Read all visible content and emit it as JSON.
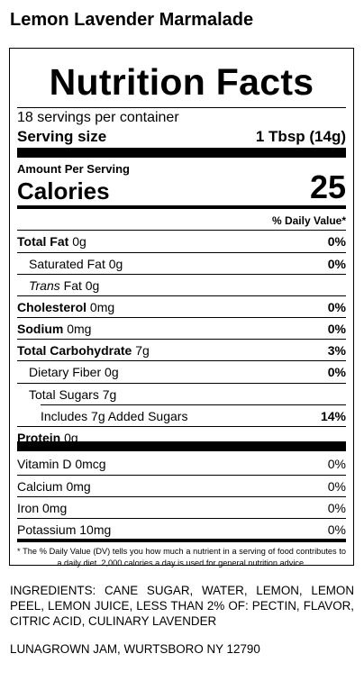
{
  "product_name": "Lemon Lavender Marmalade",
  "label": {
    "title": "Nutrition Facts",
    "servings_per_container": "18 servings per container",
    "serving_size_label": "Serving size",
    "serving_size_value": "1 Tbsp (14g)",
    "amount_per_serving": "Amount Per Serving",
    "calories_label": "Calories",
    "calories_value": "25",
    "daily_value_header": "% Daily Value*",
    "nutrients": [
      {
        "name": "Total Fat",
        "amount": "0g",
        "dv": "0%"
      },
      {
        "name": "Saturated Fat",
        "amount": "0g",
        "dv": "0%"
      },
      {
        "name": "Trans",
        "amount": "Fat 0g",
        "dv": ""
      },
      {
        "name": "Cholesterol",
        "amount": "0mg",
        "dv": "0%"
      },
      {
        "name": "Sodium",
        "amount": "0mg",
        "dv": "0%"
      },
      {
        "name": "Total Carbohydrate",
        "amount": "7g",
        "dv": "3%"
      },
      {
        "name": "Dietary Fiber",
        "amount": "0g",
        "dv": "0%"
      },
      {
        "name": "Total Sugars",
        "amount": "7g",
        "dv": ""
      },
      {
        "name": "Includes 7g Added Sugars",
        "amount": "",
        "dv": "14%"
      },
      {
        "name": "Protein",
        "amount": "0g",
        "dv": ""
      }
    ],
    "micronutrients": [
      {
        "name": "Vitamin D",
        "amount": "0mcg",
        "dv": "0%"
      },
      {
        "name": "Calcium",
        "amount": "0mg",
        "dv": "0%"
      },
      {
        "name": "Iron",
        "amount": "0mg",
        "dv": "0%"
      },
      {
        "name": "Potassium",
        "amount": "10mg",
        "dv": "0%"
      }
    ],
    "footnote": "* The % Daily Value (DV) tells you how much a nutrient in a serving of food contributes to a daily diet. 2,000 calories a day is used for general nutrition advice."
  },
  "ingredients": "INGREDIENTS: CANE SUGAR, WATER, LEMON, LEMON PEEL, LEMON JUICE, LESS THAN 2% OF: PECTIN, FLAVOR, CITRIC ACID, CULINARY LAVENDER",
  "manufacturer": "LUNAGROWN JAM, WURTSBORO NY 12790"
}
